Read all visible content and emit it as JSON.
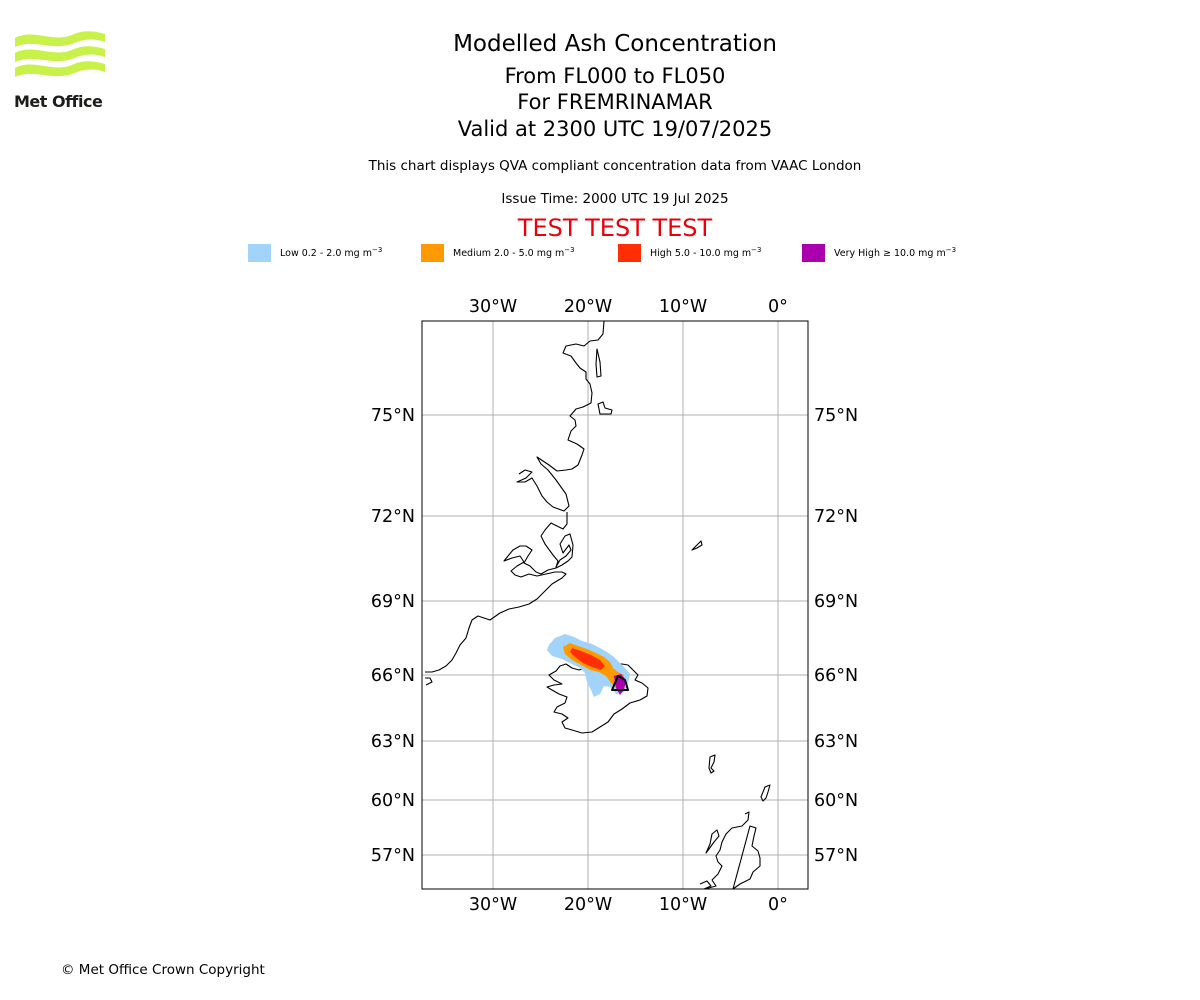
{
  "branding": {
    "logo_name": "Met Office",
    "logo_color": "#c8f24a"
  },
  "header": {
    "title": "Modelled Ash Concentration",
    "levels": "From FL000 to FL050",
    "volcano": "For FREMRINAMAR",
    "valid": "Valid at 2300 UTC 19/07/2025",
    "description": "This chart displays QVA compliant concentration data from VAAC London",
    "issue_time": "Issue Time: 2000 UTC 19 Jul 2025",
    "test_banner": "TEST TEST TEST",
    "test_color": "#e8000b"
  },
  "legend": [
    {
      "prefix": "Low 0.2 - 2.0 mg m",
      "color": "#a1d3fb"
    },
    {
      "prefix": "Medium 2.0 - 5.0 mg m",
      "color": "#ff9900"
    },
    {
      "prefix": "High 5.0 - 10.0 mg m",
      "color": "#ff2e05"
    },
    {
      "prefix": "Very High ≥ 10.0 mg m",
      "color": "#aa00ad"
    }
  ],
  "legend_unit_exponent": "−3",
  "map": {
    "lon_labels": [
      "30°W",
      "20°W",
      "10°W",
      "0°"
    ],
    "lat_labels": [
      "75°N",
      "72°N",
      "69°N",
      "66°N",
      "63°N",
      "60°N",
      "57°N"
    ],
    "coastline_color": "#000000",
    "grid_color": "#b0b0b0"
  },
  "footer": {
    "copyright": "© Met Office Crown Copyright"
  }
}
